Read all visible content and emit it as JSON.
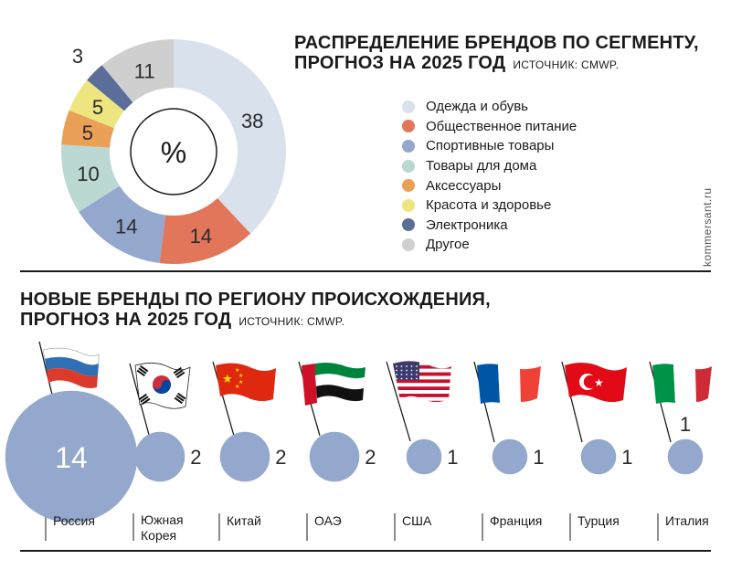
{
  "watermark": "kommersant.ru",
  "colors": {
    "clothing": "#d9e1ec",
    "food": "#e2765a",
    "sport": "#93a8cc",
    "home": "#bcd8d3",
    "accessories": "#eaa056",
    "beauty": "#ede57f",
    "electronics": "#5a6e99",
    "other": "#cfcfcf",
    "bubble": "#93a8cc"
  },
  "segment_chart": {
    "title_line1": "РАСПРЕДЕЛЕНИЕ БРЕНДОВ ПО СЕГМЕНТУ,",
    "title_line2": "ПРОГНОЗ НА 2025 ГОД",
    "source": "ИСТОЧНИК: CMWP.",
    "center_label": "%"
  },
  "region_chart": {
    "title_line1": "НОВЫЕ БРЕНДЫ ПО РЕГИОНУ ПРОИСХОЖДЕНИЯ,",
    "title_line2": "ПРОГНОЗ НА 2025 ГОД",
    "source": "ИСТОЧНИК: CMWP."
  },
  "chart_data": [
    {
      "type": "pie",
      "title": "РАСПРЕДЕЛЕНИЕ БРЕНДОВ ПО СЕГМЕНТУ, ПРОГНОЗ НА 2025 ГОД",
      "unit": "%",
      "legend_placement": "right",
      "categories": [
        "Одежда и обувь",
        "Общественное питание",
        "Спортивные товары",
        "Товары для дома",
        "Аксессуары",
        "Красота и здоровье",
        "Электроника",
        "Другое"
      ],
      "values": [
        38,
        14,
        14,
        10,
        5,
        5,
        3,
        11
      ],
      "color_keys": [
        "clothing",
        "food",
        "sport",
        "home",
        "accessories",
        "beauty",
        "electronics",
        "other"
      ]
    },
    {
      "type": "scatter",
      "title": "НОВЫЕ БРЕНДЫ ПО РЕГИОНУ ПРОИСХОЖДЕНИЯ, ПРОГНОЗ НА 2025 ГОД",
      "categories": [
        "Россия",
        "Южная Корея",
        "Китай",
        "ОАЭ",
        "США",
        "Франция",
        "Турция",
        "Италия"
      ],
      "values": [
        14,
        2,
        2,
        2,
        1,
        1,
        1,
        1
      ],
      "flags": [
        "russia",
        "south-korea",
        "china",
        "uae",
        "usa",
        "france",
        "turkey",
        "italy"
      ]
    }
  ]
}
